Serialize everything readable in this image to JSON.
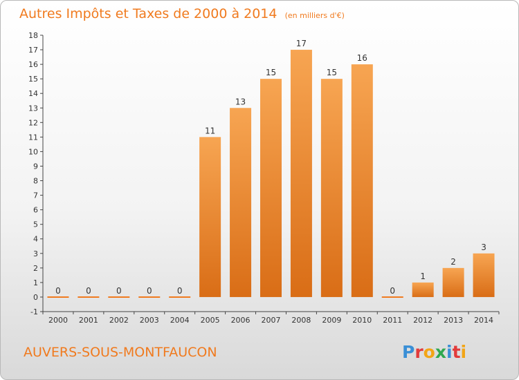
{
  "chart_data": {
    "type": "bar",
    "title": "Autres Impôts et Taxes de 2000 à 2014",
    "subtitle": "(en milliers d'€)",
    "categories": [
      "2000",
      "2001",
      "2002",
      "2003",
      "2004",
      "2005",
      "2006",
      "2007",
      "2008",
      "2009",
      "2010",
      "2011",
      "2012",
      "2013",
      "2014"
    ],
    "values": [
      0,
      0,
      0,
      0,
      0,
      11,
      13,
      15,
      17,
      15,
      16,
      0,
      1,
      2,
      3
    ],
    "ylim": [
      -1,
      18
    ],
    "yticks": [
      -1,
      0,
      1,
      2,
      3,
      4,
      5,
      6,
      7,
      8,
      9,
      10,
      11,
      12,
      13,
      14,
      15,
      16,
      17,
      18
    ],
    "grid": false,
    "bar_color": "#f07a1e"
  },
  "footer": {
    "commune": "AUVERS-SOUS-MONTFAUCON",
    "brand": "Proxiti"
  },
  "colors": {
    "accent": "#f07a1e",
    "bar_light": "#f7a552",
    "bar_dark": "#d96d16"
  }
}
